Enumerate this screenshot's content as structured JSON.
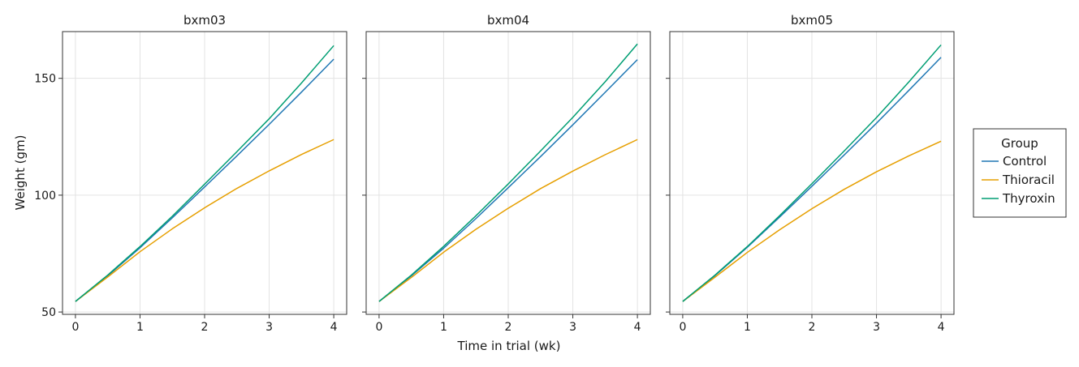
{
  "figure": {
    "xlabel": "Time in trial (wk)",
    "ylabel": "Weight (gm)"
  },
  "legend": {
    "title": "Group",
    "placement": "right",
    "entries": [
      {
        "label": "Control",
        "color": "#1f77b4"
      },
      {
        "label": "Thioracil",
        "color": "#e69f00"
      },
      {
        "label": "Thyroxin",
        "color": "#009e73"
      }
    ]
  },
  "chart_data": [
    {
      "type": "line",
      "title": "bxm03",
      "grid": true,
      "xlim": [
        -0.2,
        4.2
      ],
      "ylim": [
        49,
        170
      ],
      "xticks": [
        0,
        1,
        2,
        3,
        4
      ],
      "yticks": [
        50,
        100,
        150
      ],
      "x": [
        0,
        0.5,
        1,
        1.5,
        2,
        2.5,
        3,
        3.5,
        4
      ],
      "series": [
        {
          "name": "Control",
          "color": "#1f77b4",
          "values": [
            54.5,
            65.5,
            77.5,
            90.3,
            103.5,
            116.8,
            130.3,
            144.1,
            158.2
          ]
        },
        {
          "name": "Thioracil",
          "color": "#e69f00",
          "values": [
            54.5,
            65.0,
            75.8,
            85.6,
            94.6,
            102.9,
            110.4,
            117.4,
            123.8
          ]
        },
        {
          "name": "Thyroxin",
          "color": "#009e73",
          "values": [
            54.5,
            65.8,
            78.0,
            91.0,
            104.7,
            118.6,
            132.7,
            148.0,
            164.0
          ]
        }
      ]
    },
    {
      "type": "line",
      "title": "bxm04",
      "grid": true,
      "xlim": [
        -0.2,
        4.2
      ],
      "ylim": [
        49,
        170
      ],
      "xticks": [
        0,
        1,
        2,
        3,
        4
      ],
      "yticks": [
        50,
        100,
        150
      ],
      "x": [
        0,
        0.5,
        1,
        1.5,
        2,
        2.5,
        3,
        3.5,
        4
      ],
      "series": [
        {
          "name": "Control",
          "color": "#1f77b4",
          "values": [
            54.5,
            65.5,
            77.3,
            90.0,
            103.2,
            116.5,
            130.1,
            144.0,
            158.0
          ]
        },
        {
          "name": "Thioracil",
          "color": "#e69f00",
          "values": [
            54.5,
            64.8,
            75.6,
            85.4,
            94.4,
            102.8,
            110.3,
            117.3,
            123.8
          ]
        },
        {
          "name": "Thyroxin",
          "color": "#009e73",
          "values": [
            54.5,
            65.8,
            78.1,
            91.2,
            104.8,
            118.9,
            133.3,
            148.5,
            164.7
          ]
        }
      ]
    },
    {
      "type": "line",
      "title": "bxm05",
      "grid": true,
      "xlim": [
        -0.2,
        4.2
      ],
      "ylim": [
        49,
        170
      ],
      "xticks": [
        0,
        1,
        2,
        3,
        4
      ],
      "yticks": [
        50,
        100,
        150
      ],
      "x": [
        0,
        0.5,
        1,
        1.5,
        2,
        2.5,
        3,
        3.5,
        4
      ],
      "series": [
        {
          "name": "Control",
          "color": "#1f77b4",
          "values": [
            54.5,
            65.6,
            77.7,
            90.6,
            103.8,
            117.2,
            130.8,
            144.8,
            159.0
          ]
        },
        {
          "name": "Thioracil",
          "color": "#e69f00",
          "values": [
            54.5,
            64.9,
            75.5,
            85.2,
            94.2,
            102.5,
            110.0,
            116.8,
            123.1
          ]
        },
        {
          "name": "Thyroxin",
          "color": "#009e73",
          "values": [
            54.5,
            65.8,
            78.0,
            91.2,
            104.9,
            118.9,
            133.2,
            148.4,
            164.3
          ]
        }
      ]
    }
  ]
}
